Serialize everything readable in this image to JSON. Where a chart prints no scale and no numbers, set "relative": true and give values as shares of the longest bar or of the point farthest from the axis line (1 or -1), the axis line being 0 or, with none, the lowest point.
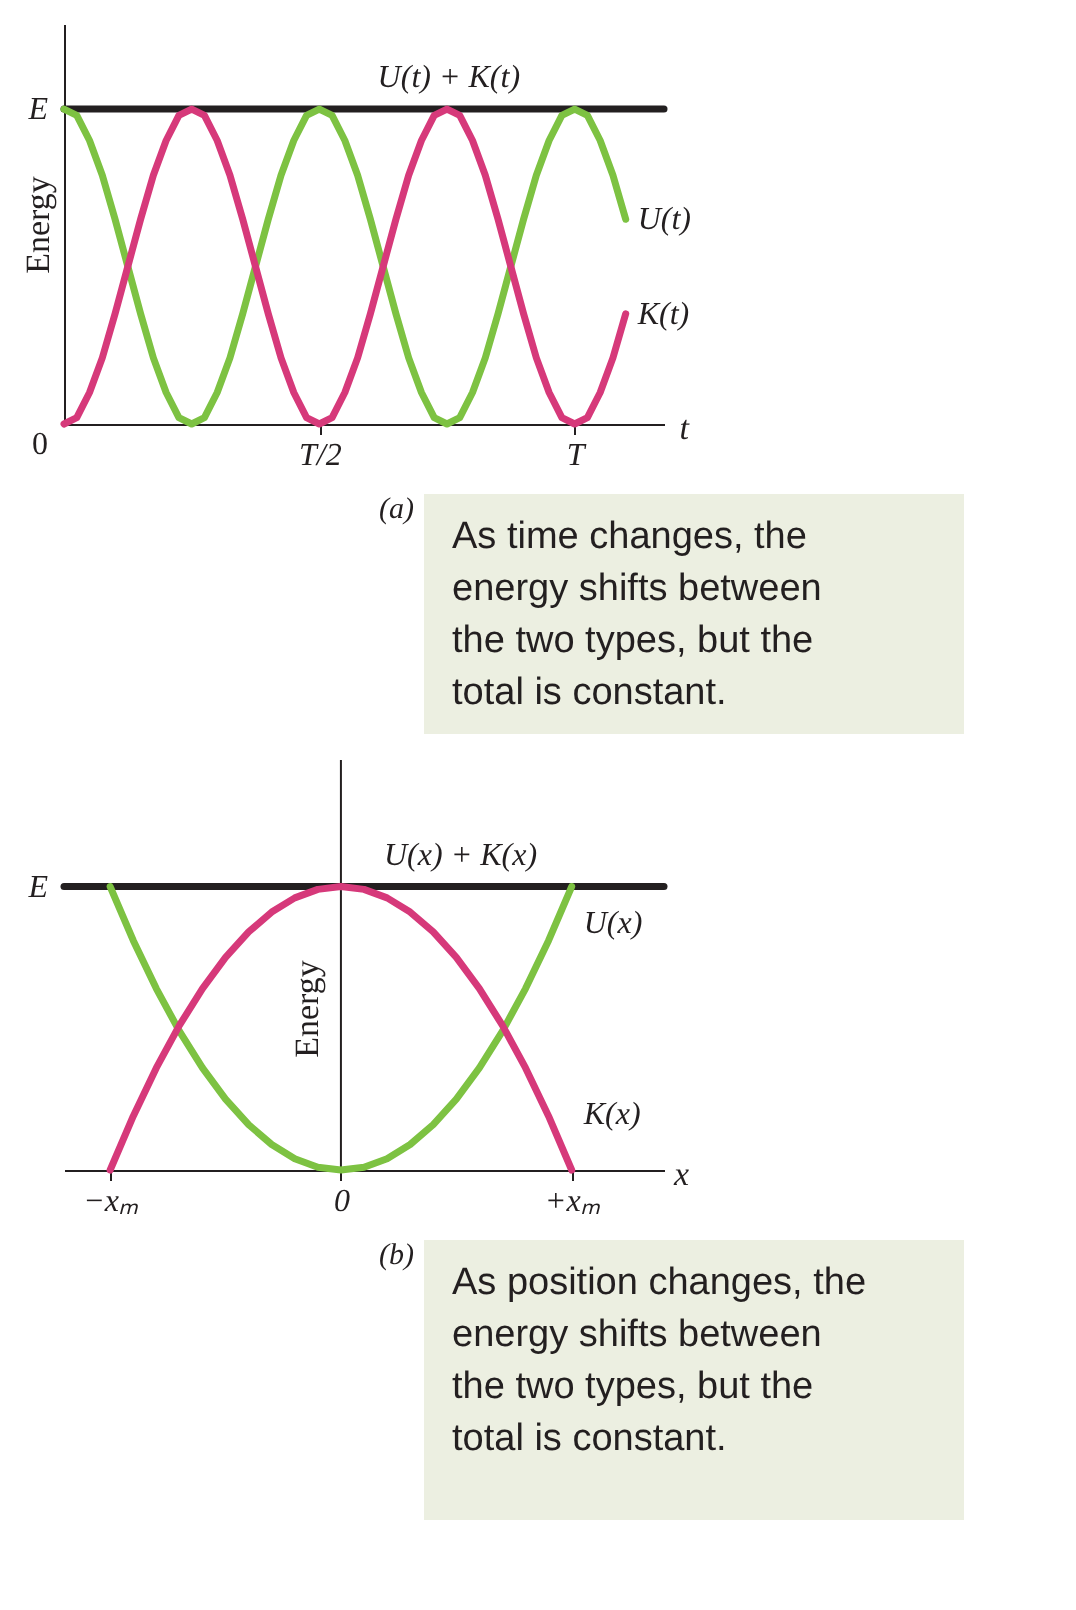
{
  "chart_data": [
    {
      "type": "line",
      "relative": true,
      "xlabel": "t",
      "ylabel": "Energy",
      "categories": [
        null,
        null,
        null,
        null,
        null,
        null,
        null,
        null,
        null,
        null,
        null,
        null,
        null,
        null,
        null,
        null,
        null,
        null,
        null,
        null,
        "T/2",
        null,
        null,
        null,
        null,
        null,
        null,
        null,
        null,
        null,
        null,
        null,
        null,
        null,
        null,
        null,
        null,
        null,
        null,
        null,
        "T",
        null,
        null,
        null,
        null,
        null,
        null,
        null
      ],
      "series": [
        {
          "name": "U(t) + K(t)",
          "color": "#231f20",
          "values": [
            1,
            1,
            1,
            1,
            1,
            1,
            1,
            1,
            1,
            1,
            1,
            1,
            1,
            1,
            1,
            1,
            1,
            1,
            1,
            1,
            1,
            1,
            1,
            1,
            1,
            1,
            1,
            1,
            1,
            1,
            1,
            1,
            1,
            1,
            1,
            1,
            1,
            1,
            1,
            1,
            1,
            1,
            1,
            1,
            1,
            1,
            1,
            1
          ]
        },
        {
          "name": "U(t)",
          "color": "#7dc242",
          "values": [
            1,
            0.98,
            0.9,
            0.79,
            0.65,
            0.5,
            0.35,
            0.21,
            0.1,
            0.02,
            0,
            0.02,
            0.1,
            0.21,
            0.35,
            0.5,
            0.65,
            0.79,
            0.9,
            0.98,
            1,
            0.98,
            0.9,
            0.79,
            0.65,
            0.5,
            0.35,
            0.21,
            0.1,
            0.02,
            0,
            0.02,
            0.1,
            0.21,
            0.35,
            0.5,
            0.65,
            0.79,
            0.9,
            0.98,
            1,
            0.98,
            0.9,
            0.79,
            0.65,
            null,
            null,
            null
          ]
        },
        {
          "name": "K(t)",
          "color": "#d6397a",
          "values": [
            0,
            0.02,
            0.1,
            0.21,
            0.35,
            0.5,
            0.65,
            0.79,
            0.9,
            0.98,
            1,
            0.98,
            0.9,
            0.79,
            0.65,
            0.5,
            0.35,
            0.21,
            0.1,
            0.02,
            0,
            0.02,
            0.1,
            0.21,
            0.35,
            0.5,
            0.65,
            0.79,
            0.9,
            0.98,
            1,
            0.98,
            0.9,
            0.79,
            0.65,
            0.5,
            0.35,
            0.21,
            0.1,
            0.02,
            0,
            0.02,
            0.1,
            0.21,
            0.35,
            null,
            null,
            null
          ]
        }
      ],
      "grid": false,
      "annotations": [
        "(a)",
        "As time changes, the energy shifts between the two types, but the total is constant.",
        "E",
        "0"
      ]
    },
    {
      "type": "line",
      "relative": true,
      "xlabel": "x",
      "ylabel": "Energy",
      "categories": [
        null,
        null,
        "−xₘ",
        null,
        null,
        null,
        null,
        null,
        null,
        null,
        null,
        null,
        "0",
        null,
        null,
        null,
        null,
        null,
        null,
        null,
        null,
        null,
        "+xₘ",
        null,
        null,
        null,
        null
      ],
      "series": [
        {
          "name": "U(x) + K(x)",
          "color": "#231f20",
          "values": [
            1,
            1,
            1,
            1,
            1,
            1,
            1,
            1,
            1,
            1,
            1,
            1,
            1,
            1,
            1,
            1,
            1,
            1,
            1,
            1,
            1,
            1,
            1,
            1,
            1,
            1,
            1
          ]
        },
        {
          "name": "U(x)",
          "color": "#7dc242",
          "values": [
            null,
            null,
            1,
            0.81,
            0.64,
            0.49,
            0.36,
            0.25,
            0.16,
            0.09,
            0.04,
            0.01,
            0,
            0.01,
            0.04,
            0.09,
            0.16,
            0.25,
            0.36,
            0.49,
            0.64,
            0.81,
            1,
            null,
            null,
            null,
            null
          ]
        },
        {
          "name": "K(x)",
          "color": "#d6397a",
          "values": [
            null,
            null,
            0,
            0.19,
            0.36,
            0.51,
            0.64,
            0.75,
            0.84,
            0.91,
            0.96,
            0.99,
            1,
            0.99,
            0.96,
            0.91,
            0.84,
            0.75,
            0.64,
            0.51,
            0.36,
            0.19,
            0,
            null,
            null,
            null,
            null
          ]
        }
      ],
      "grid": false,
      "annotations": [
        "(b)",
        "As position changes, the energy shifts between the two types, but the total is constant.",
        "E"
      ]
    }
  ]
}
